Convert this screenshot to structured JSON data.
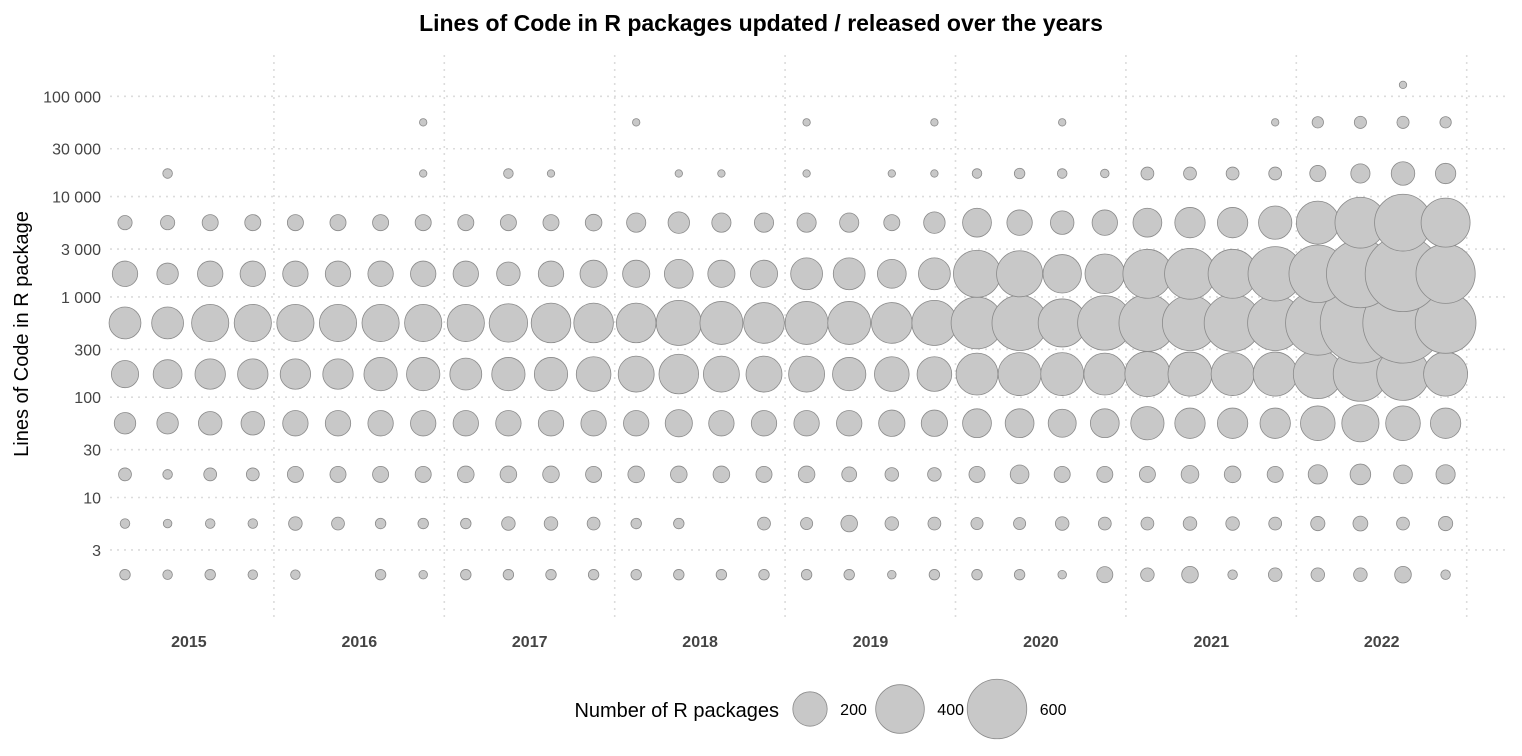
{
  "chart_data": {
    "type": "scatter",
    "title": "Lines of Code in R packages updated / released over the years",
    "xlabel": "",
    "ylabel": "Lines of Code in R package",
    "y_scale": "log10",
    "ylim": [
      1,
      200000
    ],
    "y_ticks": [
      {
        "value": 3,
        "label": "3"
      },
      {
        "value": 10,
        "label": "10"
      },
      {
        "value": 30,
        "label": "30"
      },
      {
        "value": 100,
        "label": "100"
      },
      {
        "value": 300,
        "label": "300"
      },
      {
        "value": 1000,
        "label": "1 000"
      },
      {
        "value": 3000,
        "label": "3 000"
      },
      {
        "value": 10000,
        "label": "10 000"
      },
      {
        "value": 30000,
        "label": "30 000"
      },
      {
        "value": 100000,
        "label": "100 000"
      }
    ],
    "years": [
      "2015",
      "2016",
      "2017",
      "2018",
      "2019",
      "2020",
      "2021",
      "2022"
    ],
    "periods_per_year": 4,
    "loc_bins": [
      1.7,
      5.5,
      17,
      55,
      170,
      550,
      1700,
      5500,
      17000,
      55000,
      130000
    ],
    "bubble_color": "#c8c8c8",
    "bubble_stroke": "#8a8a8a",
    "grid": true,
    "legend": {
      "title": "Number of R packages",
      "placement": "bottom",
      "entries": [
        {
          "value": 200,
          "label": "200"
        },
        {
          "value": 400,
          "label": "400"
        },
        {
          "value": 600,
          "label": "600"
        }
      ]
    },
    "counts": [
      [
        12,
        10,
        12,
        10,
        10,
        0,
        12,
        8,
        12,
        12,
        12,
        12,
        12,
        12,
        12,
        12,
        12,
        12,
        8,
        12,
        12,
        12,
        8,
        28,
        20,
        30,
        10,
        20,
        20,
        20,
        30,
        10
      ],
      [
        10,
        8,
        10,
        10,
        20,
        18,
        12,
        12,
        12,
        20,
        20,
        18,
        12,
        12,
        0,
        18,
        16,
        30,
        20,
        18,
        16,
        16,
        20,
        18,
        18,
        20,
        20,
        18,
        22,
        24,
        18,
        22
      ],
      [
        18,
        10,
        18,
        18,
        28,
        28,
        28,
        28,
        30,
        30,
        30,
        28,
        30,
        30,
        30,
        28,
        30,
        24,
        20,
        20,
        28,
        38,
        28,
        28,
        28,
        34,
        30,
        28,
        40,
        46,
        38,
        40
      ],
      [
        50,
        50,
        60,
        60,
        70,
        70,
        70,
        70,
        70,
        70,
        70,
        70,
        70,
        80,
        70,
        70,
        70,
        70,
        75,
        75,
        90,
        90,
        85,
        90,
        120,
        100,
        100,
        100,
        130,
        150,
        130,
        100
      ],
      [
        80,
        90,
        100,
        100,
        100,
        100,
        120,
        120,
        110,
        120,
        120,
        130,
        140,
        170,
        140,
        140,
        140,
        120,
        130,
        130,
        190,
        200,
        200,
        190,
        220,
        210,
        200,
        210,
        260,
        320,
        300,
        210
      ],
      [
        110,
        110,
        150,
        150,
        150,
        150,
        150,
        150,
        150,
        160,
        170,
        170,
        170,
        220,
        200,
        180,
        200,
        200,
        180,
        220,
        290,
        330,
        250,
        320,
        350,
        330,
        350,
        330,
        450,
        700,
        700,
        400
      ],
      [
        70,
        50,
        70,
        70,
        70,
        70,
        70,
        70,
        70,
        60,
        70,
        80,
        80,
        90,
        80,
        80,
        110,
        110,
        90,
        110,
        240,
        230,
        160,
        170,
        260,
        280,
        260,
        320,
        360,
        500,
        620,
        380
      ],
      [
        22,
        22,
        28,
        28,
        28,
        28,
        28,
        28,
        28,
        28,
        28,
        30,
        40,
        50,
        40,
        40,
        40,
        40,
        28,
        50,
        90,
        70,
        60,
        70,
        90,
        100,
        100,
        120,
        200,
        280,
        350,
        260
      ],
      [
        0,
        10,
        0,
        0,
        0,
        0,
        0,
        6,
        0,
        10,
        6,
        0,
        0,
        6,
        6,
        0,
        6,
        0,
        6,
        6,
        10,
        12,
        10,
        8,
        18,
        18,
        18,
        18,
        28,
        40,
        60,
        45
      ],
      [
        0,
        0,
        0,
        0,
        0,
        0,
        0,
        6,
        0,
        0,
        0,
        0,
        6,
        0,
        0,
        0,
        6,
        0,
        0,
        6,
        0,
        0,
        6,
        0,
        0,
        0,
        0,
        6,
        14,
        16,
        16,
        14
      ],
      [
        0,
        0,
        0,
        0,
        0,
        0,
        0,
        0,
        0,
        0,
        0,
        0,
        0,
        0,
        0,
        0,
        0,
        0,
        0,
        0,
        0,
        0,
        0,
        0,
        0,
        0,
        0,
        0,
        0,
        0,
        6,
        0
      ]
    ]
  }
}
